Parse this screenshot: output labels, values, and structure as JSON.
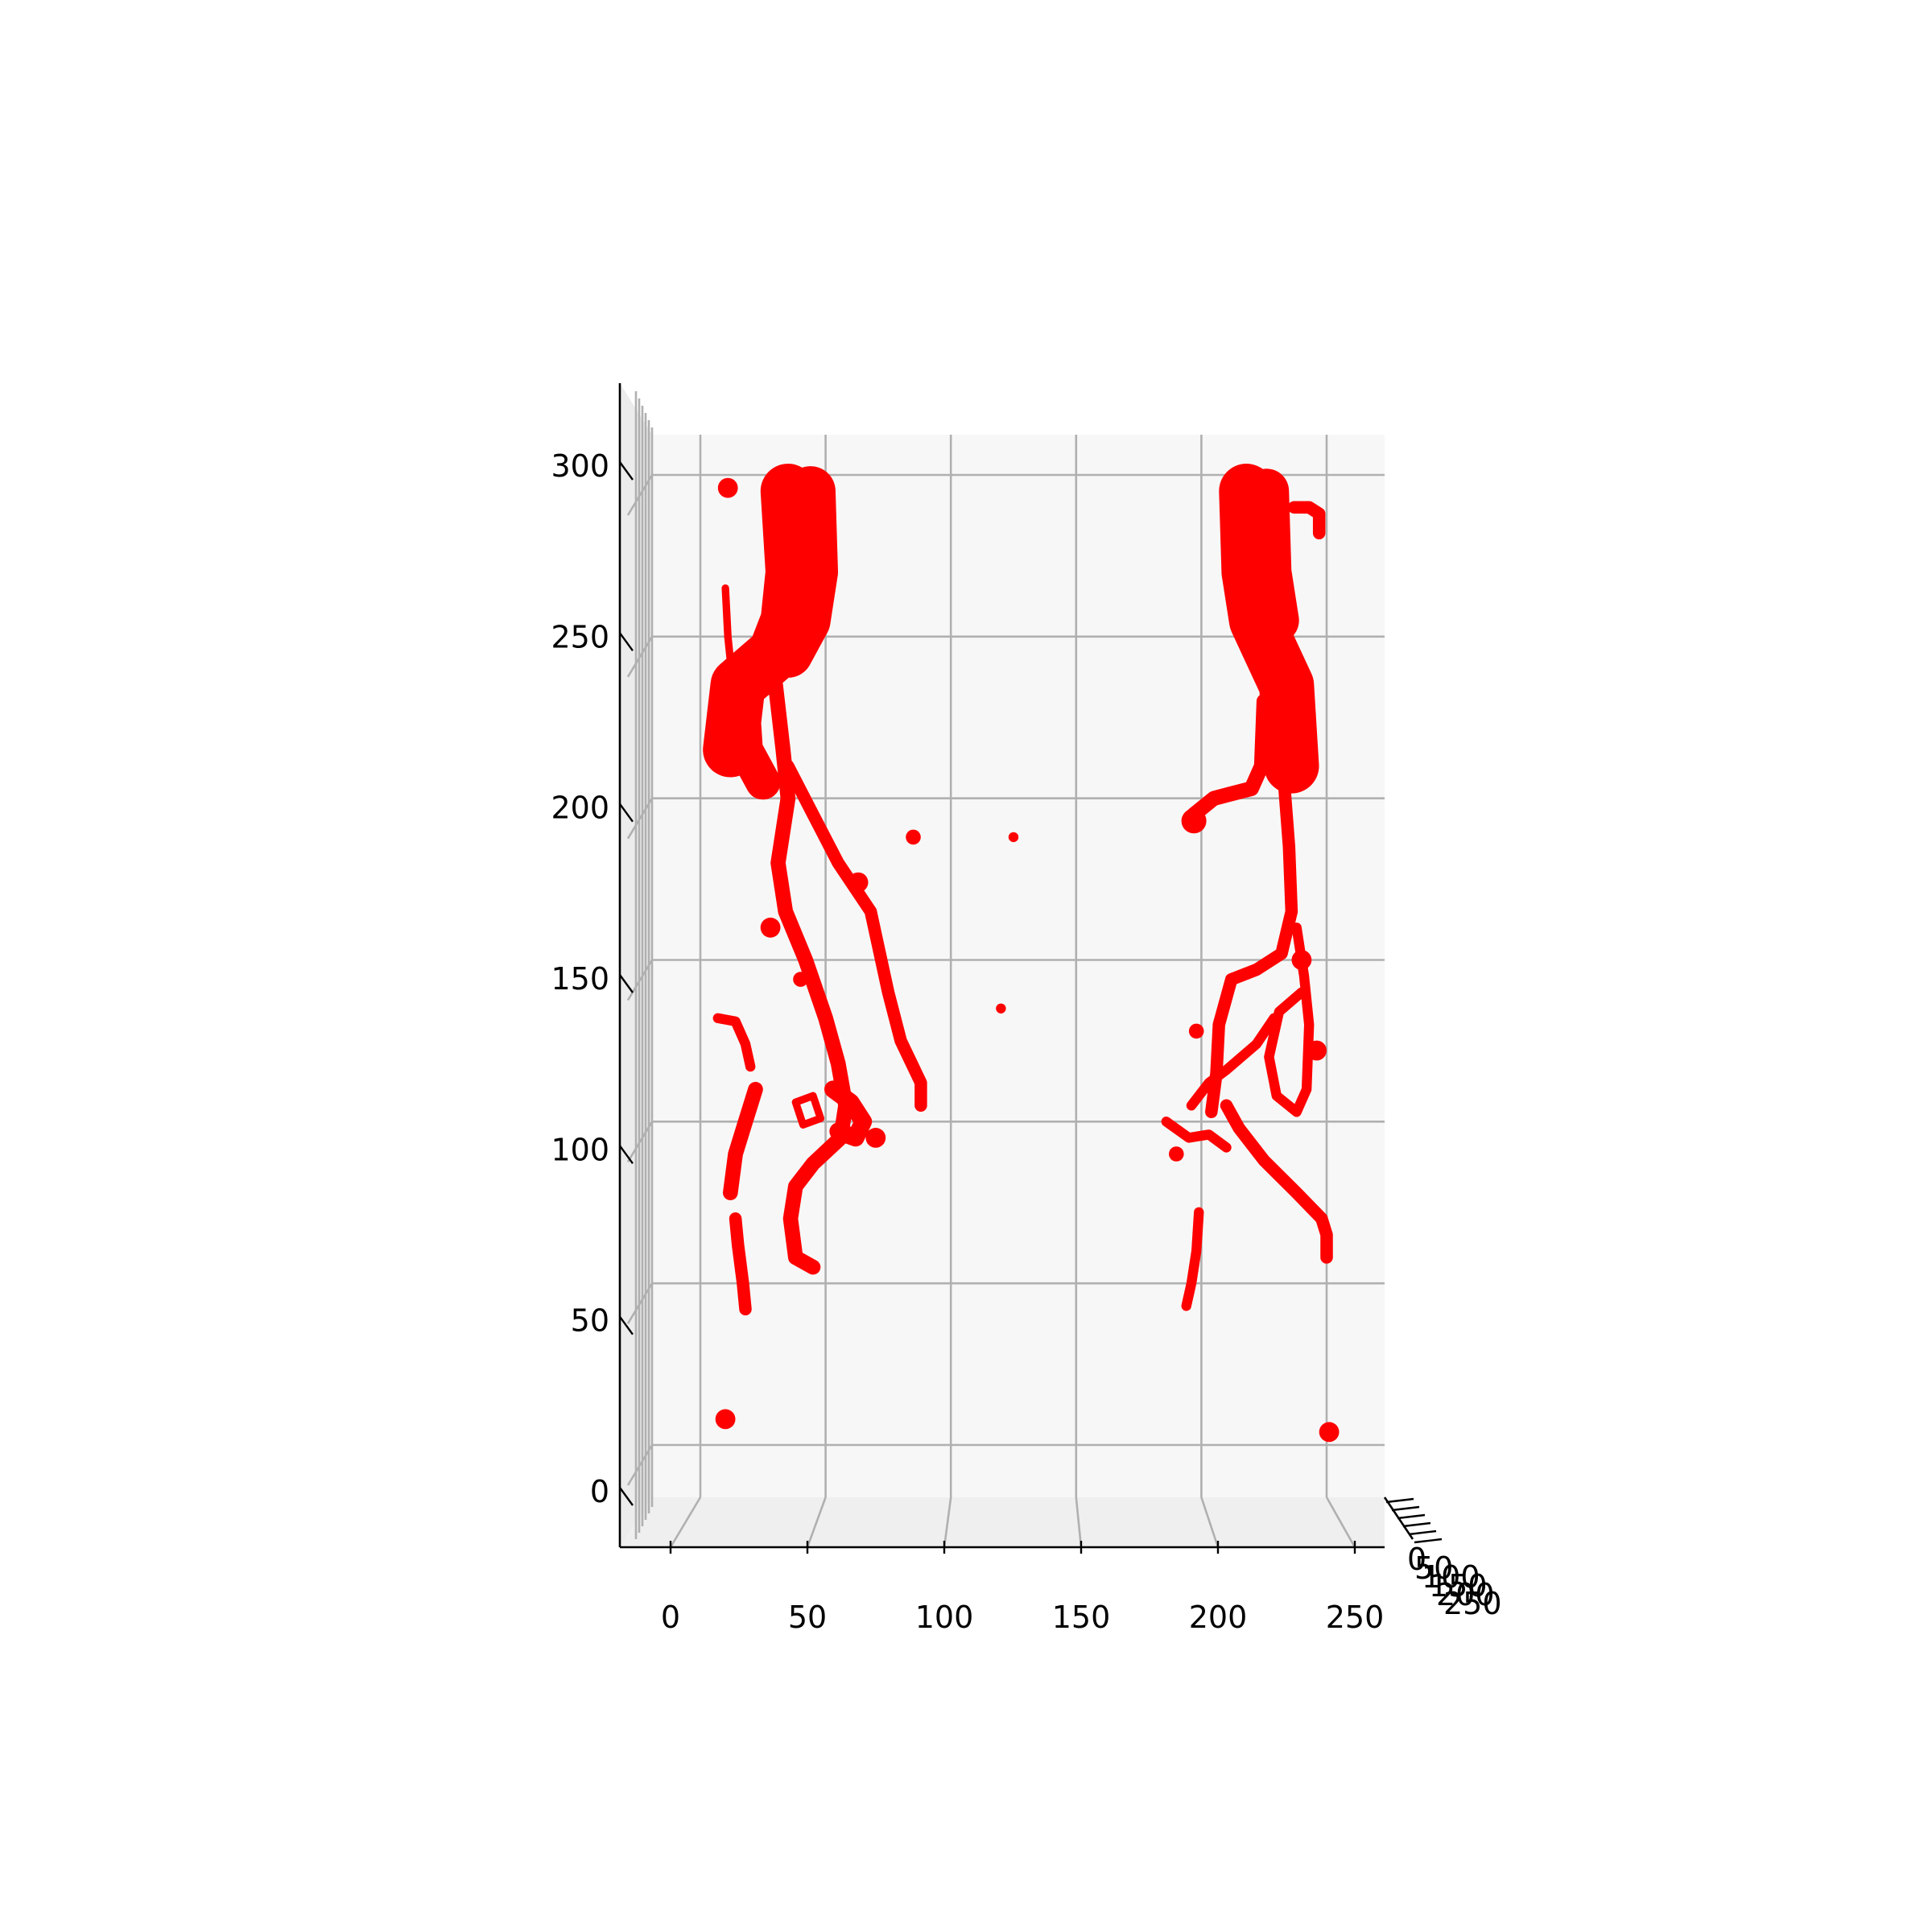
{
  "chart_data": {
    "type": "scatter",
    "projection": "3d",
    "colors": {
      "points": "#ff0000",
      "pane": "#f7f7f7",
      "grid": "#b0b0b0",
      "axis": "#000000"
    },
    "grid": true,
    "x_axis": {
      "ticks": [
        0,
        50,
        100,
        150,
        200,
        250
      ],
      "range": [
        -10,
        270
      ]
    },
    "z_axis": {
      "ticks": [
        0,
        50,
        100,
        150,
        200,
        250,
        300
      ],
      "range": [
        -10,
        300
      ]
    },
    "y_axis": {
      "ticks": [
        0,
        50,
        100,
        150,
        200,
        250
      ],
      "note": "depth axis seen end-on; labels overlap"
    },
    "x_tick_labels": [
      "0",
      "50",
      "100",
      "150",
      "200",
      "250"
    ],
    "z_tick_labels": [
      "0",
      "50",
      "100",
      "150",
      "200",
      "250",
      "300"
    ],
    "y_tick_labels": [
      "0",
      "50",
      "100",
      "150",
      "200",
      "250"
    ],
    "vessels": [
      {
        "name": "left-trunk",
        "w": 22,
        "points": [
          [
            35,
            295
          ],
          [
            37,
            270
          ],
          [
            35,
            255
          ],
          [
            30,
            245
          ],
          [
            15,
            235
          ],
          [
            12,
            215
          ]
        ]
      },
      {
        "name": "left-trunk-upper-wide",
        "w": 20,
        "points": [
          [
            44,
            295
          ],
          [
            45,
            270
          ],
          [
            42,
            255
          ],
          [
            35,
            245
          ]
        ]
      },
      {
        "name": "left-branch-flare",
        "w": 14,
        "points": [
          [
            16,
            238
          ],
          [
            18,
            215
          ],
          [
            25,
            205
          ]
        ]
      },
      {
        "name": "left-main-descending",
        "w": 6,
        "points": [
          [
            30,
            235
          ],
          [
            33,
            215
          ],
          [
            35,
            200
          ],
          [
            31,
            180
          ],
          [
            34,
            165
          ],
          [
            42,
            150
          ],
          [
            50,
            132
          ],
          [
            55,
            118
          ],
          [
            58,
            105
          ],
          [
            56,
            95
          ],
          [
            45,
            87
          ],
          [
            38,
            80
          ],
          [
            36,
            70
          ],
          [
            38,
            58
          ],
          [
            45,
            55
          ]
        ]
      },
      {
        "name": "left-lateral-branch",
        "w": 5,
        "points": [
          [
            35,
            210
          ],
          [
            45,
            195
          ],
          [
            55,
            180
          ],
          [
            68,
            165
          ],
          [
            75,
            140
          ],
          [
            80,
            125
          ],
          [
            88,
            112
          ],
          [
            88,
            105
          ]
        ]
      },
      {
        "name": "left-superficial-thin",
        "w": 3,
        "points": [
          [
            10,
            265
          ],
          [
            11,
            250
          ],
          [
            13,
            235
          ]
        ]
      },
      {
        "name": "left-small-loop",
        "w": 3,
        "points": [
          [
            43,
            285
          ],
          [
            48,
            283
          ],
          [
            48,
            277
          ],
          [
            43,
            275
          ],
          [
            45,
            268
          ],
          [
            52,
            268
          ]
        ]
      },
      {
        "name": "left-cluster-knee",
        "w": 7,
        "points": [
          [
            53,
            110
          ],
          [
            60,
            106
          ],
          [
            65,
            100
          ],
          [
            62,
            95
          ],
          [
            55,
            97
          ]
        ]
      },
      {
        "name": "left-distal-a",
        "w": 6,
        "points": [
          [
            22,
            110
          ],
          [
            18,
            100
          ],
          [
            14,
            90
          ],
          [
            12,
            78
          ]
        ]
      },
      {
        "name": "left-distal-b",
        "w": 5,
        "points": [
          [
            14,
            70
          ],
          [
            15,
            62
          ],
          [
            17,
            50
          ],
          [
            18,
            42
          ]
        ]
      },
      {
        "name": "left-arc-small",
        "w": 4,
        "points": [
          [
            7,
            132
          ],
          [
            14,
            131
          ],
          [
            18,
            124
          ],
          [
            20,
            117
          ]
        ]
      },
      {
        "name": "left-ring",
        "w": 3,
        "points": [
          [
            38,
            106
          ],
          [
            45,
            108
          ],
          [
            48,
            101
          ],
          [
            41,
            99
          ],
          [
            38,
            106
          ]
        ]
      },
      {
        "name": "right-trunk",
        "w": 22,
        "points": [
          [
            218,
            295
          ],
          [
            219,
            270
          ],
          [
            222,
            255
          ],
          [
            228,
            245
          ],
          [
            234,
            235
          ],
          [
            236,
            210
          ]
        ]
      },
      {
        "name": "right-trunk-upper-wide",
        "w": 18,
        "points": [
          [
            226,
            295
          ],
          [
            227,
            270
          ],
          [
            230,
            255
          ]
        ]
      },
      {
        "name": "right-upper-branch",
        "w": 5,
        "points": [
          [
            237,
            290
          ],
          [
            243,
            290
          ],
          [
            247,
            288
          ],
          [
            247,
            282
          ]
        ]
      },
      {
        "name": "right-main-descending",
        "w": 5,
        "points": [
          [
            232,
            245
          ],
          [
            232,
            225
          ],
          [
            233,
            205
          ],
          [
            235,
            185
          ],
          [
            236,
            165
          ],
          [
            232,
            152
          ],
          [
            222,
            147
          ],
          [
            212,
            144
          ],
          [
            207,
            130
          ],
          [
            206,
            115
          ],
          [
            204,
            103
          ]
        ]
      },
      {
        "name": "right-lateral-hook",
        "w": 6,
        "points": [
          [
            225,
            230
          ],
          [
            224,
            210
          ],
          [
            220,
            203
          ],
          [
            205,
            200
          ],
          [
            197,
            195
          ]
        ]
      },
      {
        "name": "right-cluster-loop",
        "w": 4,
        "points": [
          [
            238,
            160
          ],
          [
            241,
            145
          ],
          [
            243,
            130
          ],
          [
            242,
            110
          ],
          [
            238,
            103
          ],
          [
            230,
            108
          ],
          [
            227,
            120
          ],
          [
            231,
            134
          ],
          [
            240,
            140
          ]
        ]
      },
      {
        "name": "right-lower-branch",
        "w": 5,
        "points": [
          [
            210,
            105
          ],
          [
            215,
            98
          ],
          [
            225,
            88
          ],
          [
            238,
            78
          ],
          [
            248,
            70
          ],
          [
            250,
            65
          ],
          [
            250,
            58
          ]
        ]
      },
      {
        "name": "right-cross-branch",
        "w": 4,
        "points": [
          [
            196,
            105
          ],
          [
            203,
            112
          ],
          [
            210,
            116
          ],
          [
            222,
            124
          ],
          [
            229,
            132
          ]
        ]
      },
      {
        "name": "right-left-spray",
        "w": 4,
        "points": [
          [
            186,
            100
          ],
          [
            195,
            95
          ],
          [
            203,
            96
          ],
          [
            210,
            92
          ]
        ]
      },
      {
        "name": "right-distal-thin",
        "w": 4,
        "points": [
          [
            199,
            72
          ],
          [
            198,
            60
          ],
          [
            196,
            50
          ],
          [
            194,
            43
          ]
        ]
      }
    ],
    "blobs": [
      {
        "name": "left-top-dot",
        "p": [
          11,
          296
        ],
        "r": 4
      },
      {
        "name": "left-bottom-dot",
        "p": [
          10,
          8
        ],
        "r": 4
      },
      {
        "name": "right-bottom-dot",
        "p": [
          251,
          4
        ],
        "r": 4
      },
      {
        "name": "right-hook-end",
        "p": [
          197,
          193
        ],
        "r": 5
      },
      {
        "name": "mid-speck-a",
        "p": [
          125,
          188
        ],
        "r": 2
      },
      {
        "name": "mid-speck-b",
        "p": [
          120,
          135
        ],
        "r": 2
      },
      {
        "name": "right-speck",
        "p": [
          198,
          128
        ],
        "r": 3
      },
      {
        "name": "left-scatter-a",
        "p": [
          85,
          188
        ],
        "r": 3
      },
      {
        "name": "left-scatter-b",
        "p": [
          63,
          174
        ],
        "r": 4
      },
      {
        "name": "left-scatter-c",
        "p": [
          28,
          160
        ],
        "r": 4
      },
      {
        "name": "left-scatter-d",
        "p": [
          40,
          144
        ],
        "r": 3
      },
      {
        "name": "left-scatter-e",
        "p": [
          70,
          95
        ],
        "r": 4
      },
      {
        "name": "right-scatter-a",
        "p": [
          240,
          150
        ],
        "r": 4
      },
      {
        "name": "right-scatter-b",
        "p": [
          246,
          122
        ],
        "r": 4
      },
      {
        "name": "right-scatter-c",
        "p": [
          190,
          90
        ],
        "r": 3
      }
    ]
  }
}
